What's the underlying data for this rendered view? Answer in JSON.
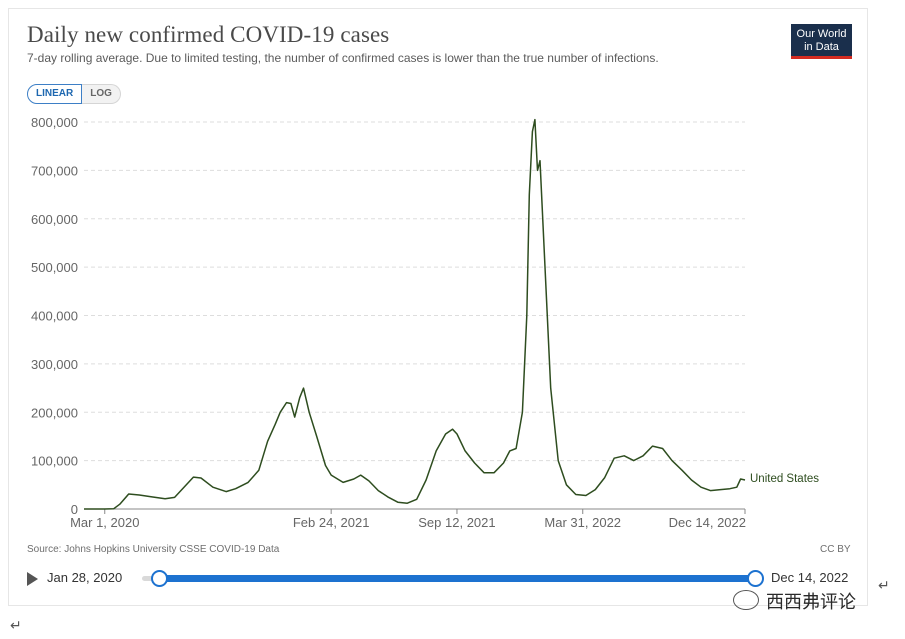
{
  "header": {
    "title": "Daily new confirmed COVID-19 cases",
    "subtitle": "7-day rolling average. Due to limited testing, the number of confirmed cases is lower than the true number of infections.",
    "logo_line1": "Our World",
    "logo_line2": "in Data"
  },
  "scale_toggle": {
    "linear_label": "LINEAR",
    "log_label": "LOG",
    "selected": "LINEAR"
  },
  "footer": {
    "source": "Source: Johns Hopkins University CSSE COVID-19 Data",
    "license": "CC BY"
  },
  "timeline": {
    "start_label": "Jan 28, 2020",
    "end_label": "Dec 14, 2022"
  },
  "watermark": {
    "text": "西西弗评论"
  },
  "colors": {
    "series": "#2e4d1f",
    "accent": "#1d72d0",
    "grid": "#dddddd",
    "axis": "#888888"
  },
  "chart_data": {
    "type": "line",
    "title": "Daily new confirmed COVID-19 cases",
    "subtitle": "7-day rolling average. Due to limited testing, the number of confirmed cases is lower than the true number of infections.",
    "xlabel": "",
    "ylabel": "",
    "ylim": [
      0,
      800000
    ],
    "xlim": [
      "2020-01-28",
      "2022-12-14"
    ],
    "y_ticks": [
      0,
      100000,
      200000,
      300000,
      400000,
      500000,
      600000,
      700000,
      800000
    ],
    "y_tick_labels": [
      "0",
      "100,000",
      "200,000",
      "300,000",
      "400,000",
      "500,000",
      "600,000",
      "700,000",
      "800,000"
    ],
    "x_ticks": [
      "2020-03-01",
      "2021-02-24",
      "2021-09-12",
      "2022-03-31",
      "2022-12-14"
    ],
    "x_tick_labels": [
      "Mar 1, 2020",
      "Feb 24, 2021",
      "Sep 12, 2021",
      "Mar 31, 2022",
      "Dec 14, 2022"
    ],
    "grid": "horizontal",
    "legend": "right",
    "series": [
      {
        "name": "United States",
        "points": [
          [
            "2020-01-28",
            0
          ],
          [
            "2020-03-01",
            0
          ],
          [
            "2020-03-15",
            500
          ],
          [
            "2020-03-25",
            10000
          ],
          [
            "2020-04-08",
            31000
          ],
          [
            "2020-04-25",
            29000
          ],
          [
            "2020-05-15",
            25000
          ],
          [
            "2020-06-05",
            21000
          ],
          [
            "2020-06-20",
            24000
          ],
          [
            "2020-07-05",
            45000
          ],
          [
            "2020-07-20",
            66000
          ],
          [
            "2020-08-01",
            64000
          ],
          [
            "2020-08-20",
            45000
          ],
          [
            "2020-09-10",
            36000
          ],
          [
            "2020-09-25",
            42000
          ],
          [
            "2020-10-15",
            55000
          ],
          [
            "2020-11-01",
            80000
          ],
          [
            "2020-11-15",
            140000
          ],
          [
            "2020-11-27",
            175000
          ],
          [
            "2020-12-05",
            200000
          ],
          [
            "2020-12-15",
            220000
          ],
          [
            "2020-12-22",
            218000
          ],
          [
            "2020-12-28",
            190000
          ],
          [
            "2021-01-05",
            230000
          ],
          [
            "2021-01-11",
            250000
          ],
          [
            "2021-01-20",
            200000
          ],
          [
            "2021-02-01",
            150000
          ],
          [
            "2021-02-15",
            90000
          ],
          [
            "2021-02-24",
            70000
          ],
          [
            "2021-03-15",
            55000
          ],
          [
            "2021-04-01",
            62000
          ],
          [
            "2021-04-12",
            70000
          ],
          [
            "2021-04-25",
            58000
          ],
          [
            "2021-05-10",
            38000
          ],
          [
            "2021-05-25",
            25000
          ],
          [
            "2021-06-10",
            14000
          ],
          [
            "2021-06-25",
            12000
          ],
          [
            "2021-07-10",
            20000
          ],
          [
            "2021-07-25",
            60000
          ],
          [
            "2021-08-10",
            120000
          ],
          [
            "2021-08-25",
            155000
          ],
          [
            "2021-09-05",
            165000
          ],
          [
            "2021-09-12",
            155000
          ],
          [
            "2021-09-25",
            120000
          ],
          [
            "2021-10-10",
            95000
          ],
          [
            "2021-10-25",
            75000
          ],
          [
            "2021-11-10",
            75000
          ],
          [
            "2021-11-25",
            95000
          ],
          [
            "2021-12-05",
            120000
          ],
          [
            "2021-12-15",
            125000
          ],
          [
            "2021-12-25",
            200000
          ],
          [
            "2022-01-01",
            400000
          ],
          [
            "2022-01-05",
            650000
          ],
          [
            "2022-01-10",
            780000
          ],
          [
            "2022-01-14",
            805000
          ],
          [
            "2022-01-18",
            700000
          ],
          [
            "2022-01-22",
            720000
          ],
          [
            "2022-01-30",
            500000
          ],
          [
            "2022-02-08",
            250000
          ],
          [
            "2022-02-20",
            100000
          ],
          [
            "2022-03-05",
            50000
          ],
          [
            "2022-03-20",
            30000
          ],
          [
            "2022-04-05",
            28000
          ],
          [
            "2022-04-20",
            40000
          ],
          [
            "2022-05-05",
            65000
          ],
          [
            "2022-05-20",
            105000
          ],
          [
            "2022-06-05",
            110000
          ],
          [
            "2022-06-20",
            100000
          ],
          [
            "2022-07-05",
            110000
          ],
          [
            "2022-07-20",
            130000
          ],
          [
            "2022-08-05",
            125000
          ],
          [
            "2022-08-20",
            100000
          ],
          [
            "2022-09-05",
            80000
          ],
          [
            "2022-09-20",
            60000
          ],
          [
            "2022-10-05",
            45000
          ],
          [
            "2022-10-20",
            38000
          ],
          [
            "2022-11-05",
            40000
          ],
          [
            "2022-11-20",
            42000
          ],
          [
            "2022-12-01",
            45000
          ],
          [
            "2022-12-07",
            62000
          ],
          [
            "2022-12-14",
            60000
          ]
        ]
      }
    ]
  }
}
